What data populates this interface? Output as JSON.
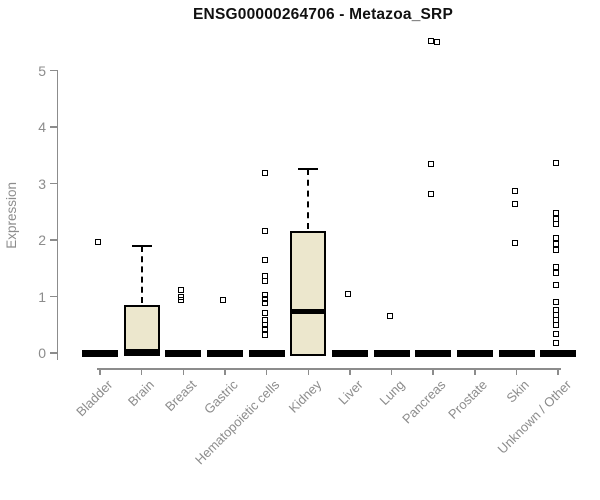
{
  "chart_data": {
    "type": "boxplot",
    "title": "ENSG00000264706 - Metazoa_SRP",
    "ylabel": "Expression",
    "ylim": [
      0,
      5
    ],
    "yticks": [
      0,
      1,
      2,
      3,
      4,
      5
    ],
    "grid": false,
    "legend": "none",
    "categories": [
      "Bladder",
      "Brain",
      "Breast",
      "Gastric",
      "Hematopoietic cells",
      "Kidney",
      "Liver",
      "Lung",
      "Pancreas",
      "Prostate",
      "Skin",
      "Unknown / Other"
    ],
    "series": [
      {
        "category": "Bladder",
        "q1": 0,
        "median": 0,
        "q3": 0,
        "whisker_low": 0,
        "whisker_high": 0,
        "outliers": [
          1.97
        ]
      },
      {
        "category": "Brain",
        "q1": 0,
        "median": 0.03,
        "q3": 0.85,
        "whisker_low": 0,
        "whisker_high": 1.9,
        "outliers": []
      },
      {
        "category": "Breast",
        "q1": 0,
        "median": 0,
        "q3": 0,
        "whisker_low": 0,
        "whisker_high": 0,
        "outliers": [
          1.11,
          1.0,
          0.94
        ]
      },
      {
        "category": "Gastric",
        "q1": 0,
        "median": 0,
        "q3": 0,
        "whisker_low": 0,
        "whisker_high": 0,
        "outliers": [
          0.93
        ]
      },
      {
        "category": "Hematopoietic cells",
        "q1": 0,
        "median": 0,
        "q3": 0,
        "whisker_low": 0,
        "whisker_high": 0,
        "outliers": [
          3.19,
          2.16,
          1.65,
          1.36,
          1.28,
          1.03,
          0.96,
          0.89,
          0.71,
          0.58,
          0.5,
          0.42,
          0.32
        ]
      },
      {
        "category": "Kidney",
        "q1": 0,
        "median": 0.73,
        "q3": 2.16,
        "whisker_low": 0,
        "whisker_high": 3.26,
        "outliers": []
      },
      {
        "category": "Liver",
        "q1": 0,
        "median": 0,
        "q3": 0,
        "whisker_low": 0,
        "whisker_high": 0,
        "outliers": [
          1.04
        ]
      },
      {
        "category": "Lung",
        "q1": 0,
        "median": 0,
        "q3": 0,
        "whisker_low": 0,
        "whisker_high": 0,
        "outliers": [
          0.66
        ]
      },
      {
        "category": "Pancreas",
        "q1": 0,
        "median": 0,
        "q3": 0,
        "whisker_low": 0,
        "whisker_high": 0,
        "outliers": [
          5.53,
          5.5,
          3.35,
          2.81
        ]
      },
      {
        "category": "Prostate",
        "q1": 0,
        "median": 0,
        "q3": 0,
        "whisker_low": 0,
        "whisker_high": 0,
        "outliers": []
      },
      {
        "category": "Skin",
        "q1": 0,
        "median": 0,
        "q3": 0,
        "whisker_low": 0,
        "whisker_high": 0,
        "outliers": [
          2.87,
          2.63,
          1.95
        ]
      },
      {
        "category": "Unknown / Other",
        "q1": 0,
        "median": 0,
        "q3": 0,
        "whisker_low": 0,
        "whisker_high": 0,
        "outliers": [
          3.37,
          2.48,
          2.38,
          2.28,
          2.03,
          1.93,
          1.83,
          1.52,
          1.42,
          1.2,
          0.9,
          0.76,
          0.67,
          0.58,
          0.5,
          0.33,
          0.18
        ]
      }
    ],
    "colors": {
      "box_fill": "#ECE7CD",
      "box_border": "#000000",
      "median": "#000000",
      "axis": "#8c8c8c",
      "tick_label": "#8c8c8c",
      "title": "#111111",
      "background": "#ffffff"
    }
  }
}
